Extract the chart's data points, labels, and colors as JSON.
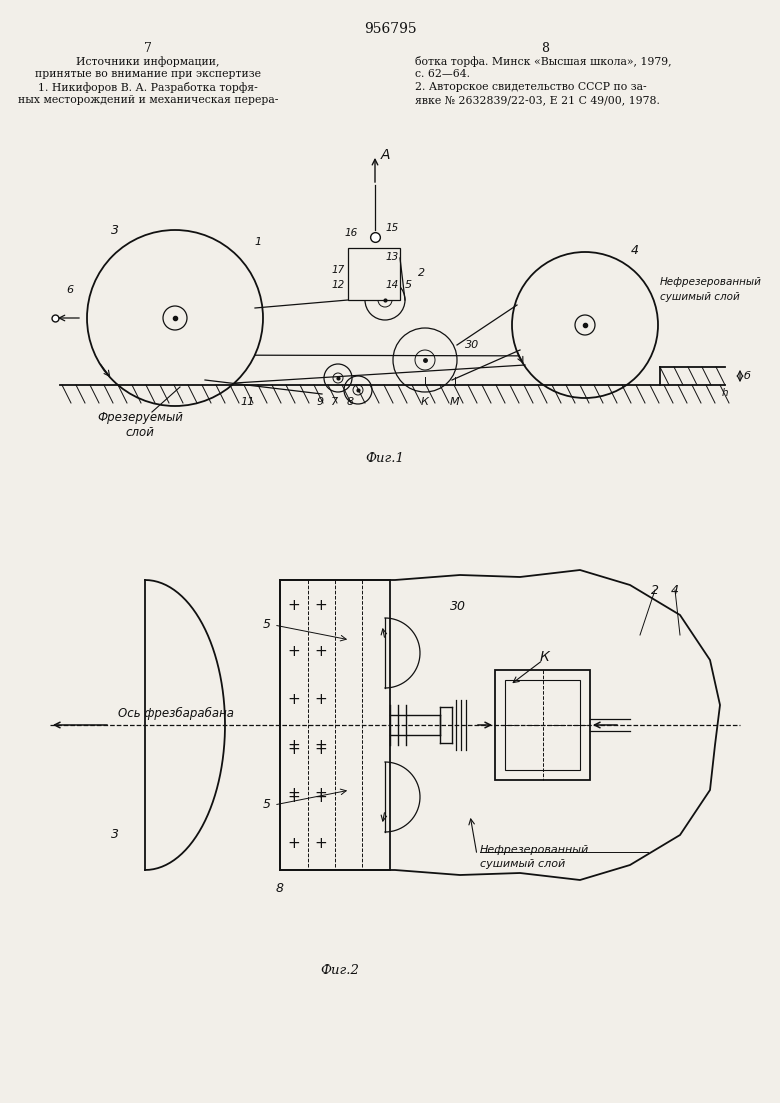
{
  "page_number": "956795",
  "col_left": "7",
  "col_right": "8",
  "text_left_lines": [
    "Источники информации,",
    "принятые во внимание при экспертизе",
    "1. Никифоров В. А. Разработка торфя-",
    "ных месторождений и механическая перера-"
  ],
  "text_right_lines": [
    "ботка торфа. Минск «Высшая школа», 1979,",
    "с. 62—64.",
    "2. Авторское свидетельство СССР по за-",
    "явке № 2632839/22-03, Е 21 С 49/00, 1978."
  ],
  "fig1_caption": "Фиг.1",
  "fig2_caption": "Фиг.2",
  "bg_color": "#f2efe9",
  "line_color": "#111111",
  "text_color": "#111111"
}
